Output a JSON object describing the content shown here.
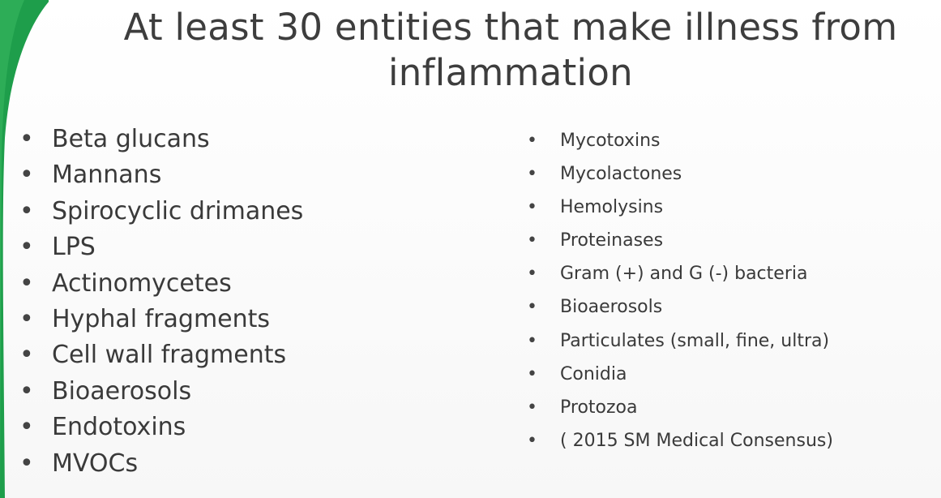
{
  "slide": {
    "title_line1": "At least 30 entities that make illness from",
    "title_line2": "inflammation",
    "accent_color": "#1e9e4b",
    "bullet_symbol": "•",
    "left_items": [
      "Beta glucans",
      "Mannans",
      "Spirocyclic drimanes",
      "LPS",
      "Actinomycetes",
      "Hyphal fragments",
      "Cell wall fragments",
      "Bioaerosols",
      "Endotoxins",
      "MVOCs"
    ],
    "right_items": [
      "Mycotoxins",
      "Mycolactones",
      "Hemolysins",
      "Proteinases",
      "Gram (+) and G (-) bacteria",
      "Bioaerosols",
      "Particulates (small, fine, ultra)",
      "Conidia",
      "Protozoa",
      "( 2015 SM Medical Consensus)"
    ]
  }
}
